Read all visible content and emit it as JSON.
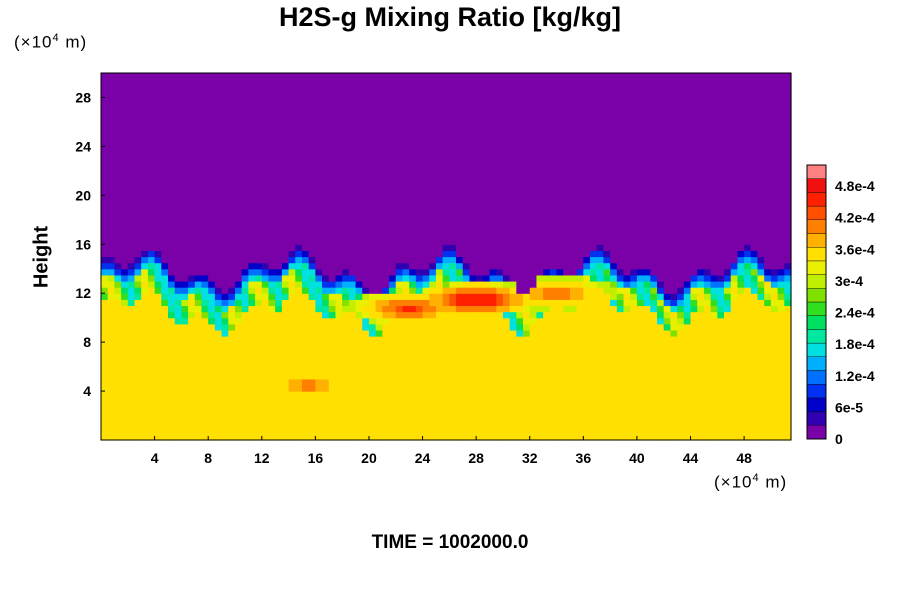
{
  "chart_data": {
    "type": "heatmap",
    "title": "H2S-g Mixing Ratio [kg/kg]",
    "ylabel": "Height",
    "x_unit": {
      "prefix": "(×10",
      "exp": "4",
      "suffix": " m)"
    },
    "y_unit": {
      "prefix": "(×10",
      "exp": "4",
      "suffix": " m)"
    },
    "xlim": [
      0,
      51.5
    ],
    "ylim": [
      0,
      30
    ],
    "x_ticks": [
      "4",
      "8",
      "12",
      "16",
      "20",
      "24",
      "28",
      "32",
      "36",
      "40",
      "44",
      "48"
    ],
    "x_tick_values": [
      4,
      8,
      12,
      16,
      20,
      24,
      28,
      32,
      36,
      40,
      44,
      48
    ],
    "y_ticks": [
      "4",
      "8",
      "12",
      "16",
      "20",
      "24",
      "28"
    ],
    "y_tick_values": [
      4,
      8,
      12,
      16,
      20,
      24,
      28
    ],
    "colorbar": {
      "range": [
        0,
        0.00052
      ],
      "labels": [
        "0",
        "6e-5",
        "1.2e-4",
        "1.8e-4",
        "2.4e-4",
        "3e-4",
        "3.6e-4",
        "4.2e-4",
        "4.8e-4"
      ],
      "label_values": [
        0,
        6e-05,
        0.00012,
        0.00018,
        0.00024,
        0.0003,
        0.00036,
        0.00042,
        0.00048
      ],
      "colors": [
        "#7a00a8",
        "#3000b0",
        "#0000c8",
        "#0030f0",
        "#0070ff",
        "#00b0ff",
        "#00e0e0",
        "#00e8a0",
        "#00e060",
        "#30e020",
        "#80e000",
        "#c0f000",
        "#e8f000",
        "#ffe000",
        "#ffb000",
        "#ff8000",
        "#ff5000",
        "#ff2000",
        "#f01010",
        "#ff8080"
      ]
    },
    "background_value": 0.00034,
    "upper_value": 0,
    "interface_height": 12.5,
    "features": [
      {
        "x": 15.5,
        "y": 4.5,
        "value": 0.00042
      },
      {
        "x": 28,
        "y": 11.5,
        "value": 0.0005
      },
      {
        "x": 23,
        "y": 10.8,
        "value": 0.00046
      },
      {
        "x": 34,
        "y": 12,
        "value": 0.00044
      }
    ]
  },
  "time_label": "TIME = 1002000.0"
}
